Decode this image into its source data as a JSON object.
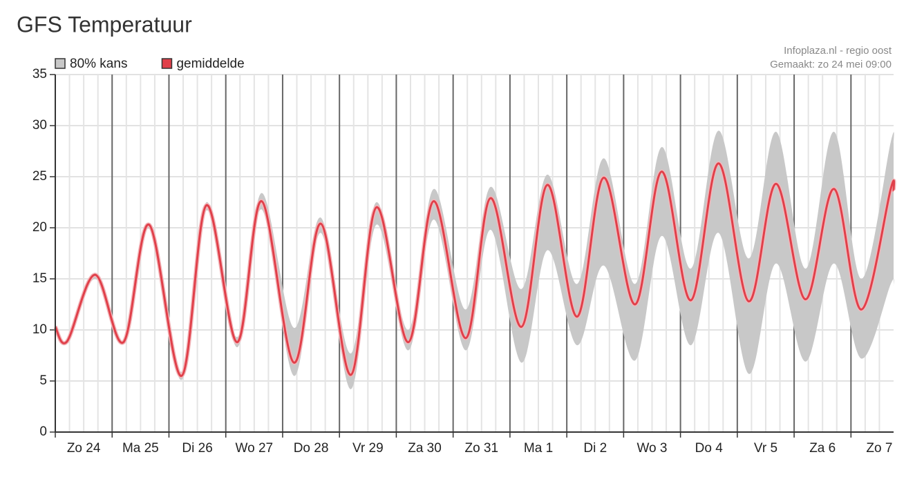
{
  "chart_data": {
    "type": "line",
    "title": "GFS Temperatuur",
    "source": "Infoplaza.nl - regio oost",
    "created": "Gemaakt: zo 24 mei 09:00",
    "x": [
      0,
      0.21,
      0.7,
      1.2,
      1.65,
      2.22,
      2.66,
      3.2,
      3.63,
      4.2,
      4.67,
      5.2,
      5.65,
      6.21,
      6.66,
      7.22,
      7.66,
      8.2,
      8.66,
      9.18,
      9.65,
      10.2,
      10.67,
      11.18,
      11.67,
      12.2,
      12.68,
      13.2,
      13.7,
      14.18,
      14.7,
      14.75
    ],
    "xlim": [
      0,
      14.75
    ],
    "xticks": [
      {
        "value": 0,
        "label": "Zo 24"
      },
      {
        "value": 1,
        "label": "Ma 25"
      },
      {
        "value": 2,
        "label": "Di 26"
      },
      {
        "value": 3,
        "label": "Wo 27"
      },
      {
        "value": 4,
        "label": "Do 28"
      },
      {
        "value": 5,
        "label": "Vr 29"
      },
      {
        "value": 6,
        "label": "Za 30"
      },
      {
        "value": 7,
        "label": "Zo 31"
      },
      {
        "value": 8,
        "label": "Ma 1"
      },
      {
        "value": 9,
        "label": "Di 2"
      },
      {
        "value": 10,
        "label": "Wo 3"
      },
      {
        "value": 11,
        "label": "Do 4"
      },
      {
        "value": 12,
        "label": "Vr 5"
      },
      {
        "value": 13,
        "label": "Za 6"
      },
      {
        "value": 14,
        "label": "Zo 7"
      }
    ],
    "ylim": [
      0,
      35
    ],
    "yticks": [
      0,
      5,
      10,
      15,
      20,
      25,
      30,
      35
    ],
    "grid": true,
    "series": [
      {
        "name": "80% kans",
        "type": "band",
        "color": "#c8c8c8",
        "low": [
          10.1,
          8.7,
          15.0,
          8.6,
          19.9,
          5.1,
          21.7,
          8.3,
          21.8,
          5.5,
          19.5,
          4.2,
          20.3,
          8.0,
          20.8,
          8.0,
          19.8,
          6.8,
          17.8,
          8.5,
          16.3,
          7.0,
          19.2,
          8.5,
          19.5,
          5.7,
          16.5,
          6.9,
          16.5,
          7.2,
          14.5,
          14.3
        ],
        "high": [
          10.5,
          9.1,
          15.6,
          9.0,
          20.5,
          5.9,
          22.5,
          9.3,
          23.4,
          10.2,
          21.0,
          7.7,
          22.5,
          10.0,
          23.8,
          12.0,
          24.0,
          14.0,
          25.2,
          14.5,
          26.8,
          14.5,
          27.9,
          16.0,
          29.5,
          17.0,
          29.4,
          16.0,
          29.4,
          15.0,
          28.4,
          28.3
        ]
      },
      {
        "name": "gemiddelde",
        "type": "line",
        "color": "#e0404a",
        "values": [
          10.3,
          8.9,
          15.4,
          8.8,
          20.3,
          5.5,
          22.2,
          8.8,
          22.6,
          6.8,
          20.4,
          5.6,
          22.0,
          8.8,
          22.6,
          9.2,
          22.9,
          10.3,
          24.2,
          11.3,
          24.9,
          12.5,
          25.5,
          12.9,
          26.3,
          12.8,
          24.3,
          13.0,
          23.8,
          12.0,
          23.8,
          23.6
        ]
      }
    ]
  }
}
